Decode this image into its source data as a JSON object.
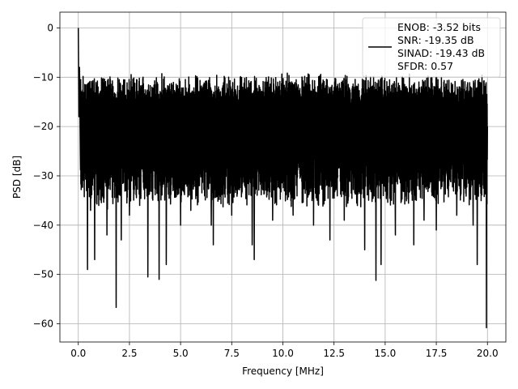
{
  "chart_data": {
    "type": "line",
    "title": "",
    "xlabel": "Frequency [MHz]",
    "ylabel": "PSD [dB]",
    "xlim": [
      -0.9,
      20.9
    ],
    "ylim": [
      -63.7,
      3.2
    ],
    "grid": true,
    "xticks": [
      0.0,
      2.5,
      5.0,
      7.5,
      10.0,
      12.5,
      15.0,
      17.5,
      20.0
    ],
    "xtick_labels": [
      "0.0",
      "2.5",
      "5.0",
      "7.5",
      "10.0",
      "12.5",
      "15.0",
      "17.5",
      "20.0"
    ],
    "yticks": [
      0,
      -10,
      -20,
      -30,
      -40,
      -50,
      -60
    ],
    "ytick_labels": [
      "0",
      "−10",
      "−20",
      "−30",
      "−40",
      "−50",
      "−60"
    ],
    "legend": {
      "placement": "top-right",
      "entries": [
        "ENOB: -3.52 bits",
        "SNR: -19.35 dB",
        "SINAD: -19.43 dB",
        "SFDR: 0.57"
      ]
    },
    "line_color": "#000000",
    "series": [
      {
        "x": [
          0.0,
          0.03,
          0.06,
          0.1,
          0.15,
          0.2,
          0.3,
          0.4,
          0.45,
          0.5,
          0.6,
          0.7,
          0.8,
          0.9,
          1.0,
          1.2,
          1.4,
          1.6,
          1.8,
          1.85,
          1.9,
          2.1,
          2.2,
          2.5,
          2.8,
          3.0,
          3.3,
          3.4,
          3.6,
          3.9,
          3.95,
          4.1,
          4.3,
          4.5,
          5.0,
          5.2,
          5.5,
          6.0,
          6.5,
          6.6,
          7.0,
          7.5,
          8.0,
          8.5,
          8.6,
          9.0,
          9.5,
          10.0,
          10.5,
          11.0,
          11.5,
          12.0,
          12.3,
          12.9,
          13.0,
          13.5,
          14.0,
          14.5,
          14.55,
          14.8,
          15.0,
          15.5,
          16.0,
          16.4,
          16.9,
          17.0,
          17.5,
          18.0,
          18.5,
          19.0,
          19.3,
          19.5,
          19.9,
          19.95,
          20.0
        ],
        "y": [
          0.0,
          -18.0,
          -8.0,
          -26.0,
          -15.0,
          -30.0,
          -17.0,
          -33.0,
          -49.0,
          -16.0,
          -37.0,
          -14.0,
          -47.0,
          -18.0,
          -36.0,
          -15.0,
          -42.0,
          -16.0,
          -32.0,
          -56.7,
          -17.0,
          -43.0,
          -14.0,
          -38.0,
          -15.0,
          -36.0,
          -16.0,
          -50.5,
          -12.0,
          -35.0,
          -51.0,
          -14.0,
          -48.0,
          -13.0,
          -40.0,
          -16.0,
          -37.0,
          -12.0,
          -40.0,
          -44.0,
          -14.0,
          -38.0,
          -12.0,
          -44.0,
          -47.0,
          -13.0,
          -39.0,
          -11.0,
          -38.0,
          -12.0,
          -40.0,
          -12.0,
          -43.0,
          -13.0,
          -39.0,
          -12.0,
          -45.0,
          -12.0,
          -51.2,
          -48.0,
          -13.0,
          -42.0,
          -12.0,
          -44.0,
          -39.0,
          -12.0,
          -41.0,
          -13.0,
          -38.0,
          -12.0,
          -40.0,
          -48.0,
          -13.0,
          -60.8,
          -20.0
        ]
      }
    ]
  }
}
